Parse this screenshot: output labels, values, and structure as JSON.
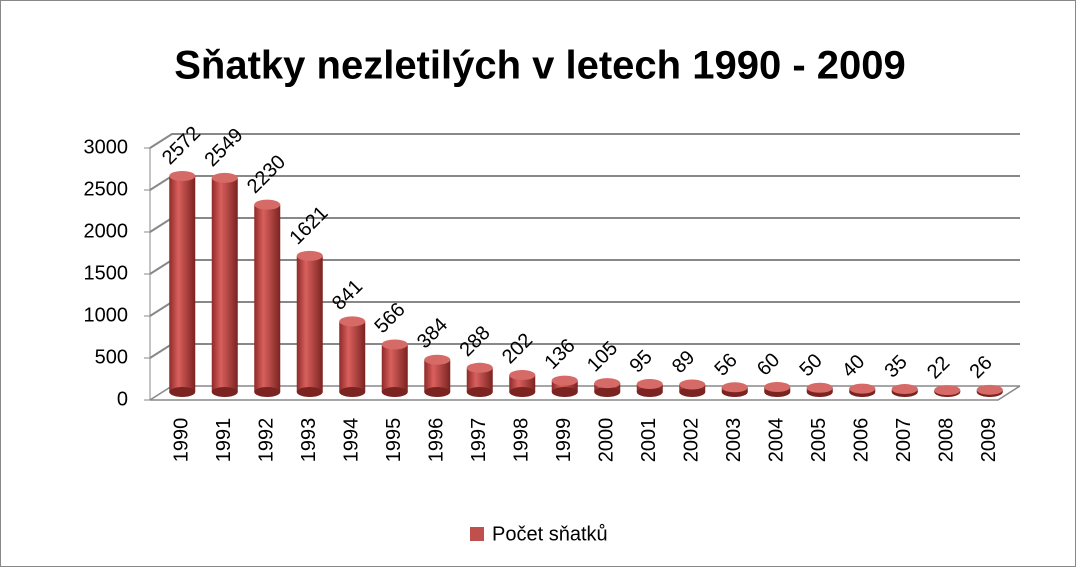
{
  "chart_data": {
    "type": "bar",
    "title": "Sňatky nezletilých v letech 1990 - 2009",
    "categories": [
      "1990",
      "1991",
      "1992",
      "1993",
      "1994",
      "1995",
      "1996",
      "1997",
      "1998",
      "1999",
      "2000",
      "2001",
      "2002",
      "2003",
      "2004",
      "2005",
      "2006",
      "2007",
      "2008",
      "2009"
    ],
    "series": [
      {
        "name": "Počet sňatků",
        "color": "#c0504d",
        "values": [
          2572,
          2549,
          2230,
          1621,
          841,
          566,
          384,
          288,
          202,
          136,
          105,
          95,
          89,
          56,
          60,
          50,
          40,
          35,
          22,
          26
        ]
      }
    ],
    "ylim": [
      0,
      3000
    ],
    "yticks": [
      0,
      500,
      1000,
      1500,
      2000,
      2500,
      3000
    ],
    "grid": true,
    "legend": "bottom"
  }
}
